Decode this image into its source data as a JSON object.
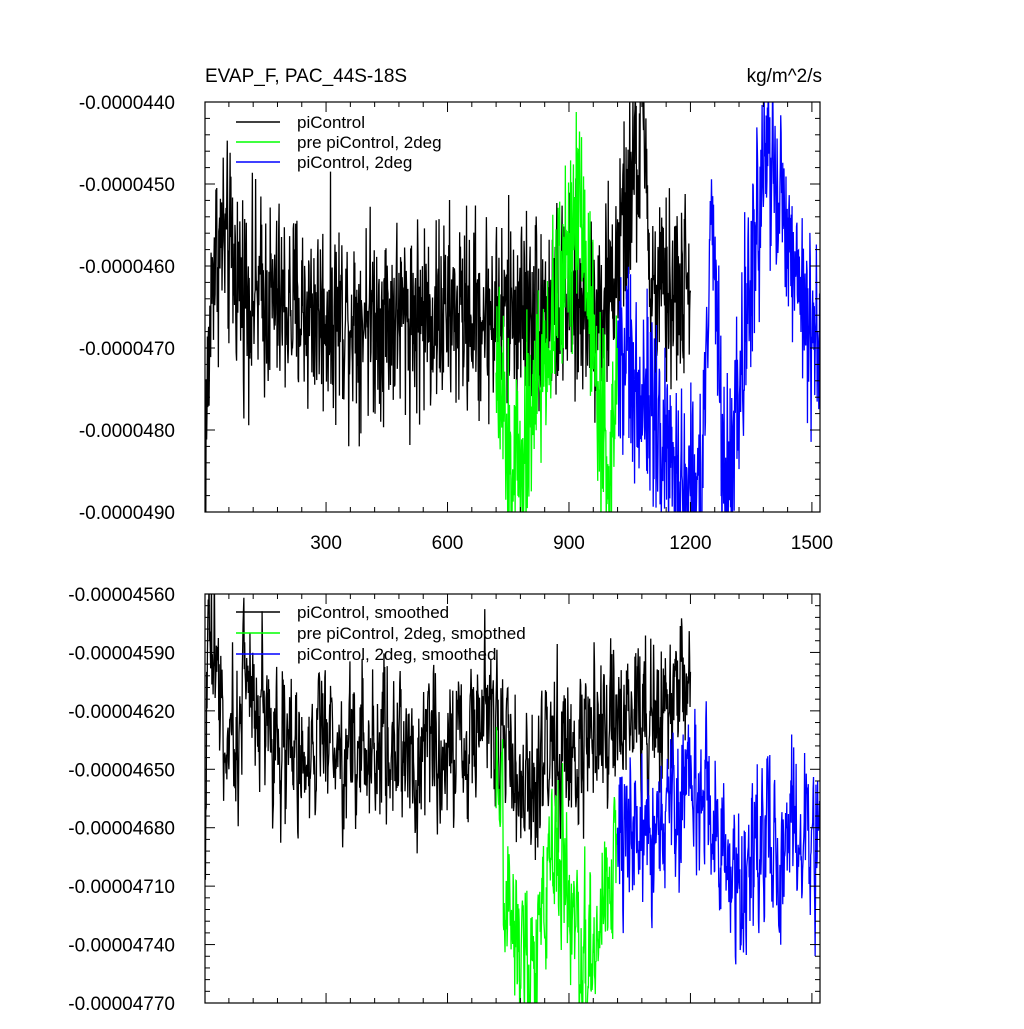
{
  "chart_data": [
    {
      "type": "line",
      "title": "EVAP_F, PAC_44S-18S",
      "units": "kg/m^2/s",
      "xlabel": "",
      "ylabel": "",
      "xlim": [
        1,
        1520
      ],
      "ylim": [
        -4.9e-05,
        -4.4e-05
      ],
      "xticks": [
        300,
        600,
        900,
        1200,
        1500
      ],
      "xtick_labels": [
        "300",
        "600",
        "900",
        "1200",
        "1500"
      ],
      "yticks": [
        -4.4e-05,
        -4.5e-05,
        -4.6e-05,
        -4.7e-05,
        -4.8e-05,
        -4.9e-05
      ],
      "ytick_labels": [
        "-0.0000440",
        "-0.0000450",
        "-0.0000460",
        "-0.0000470",
        "-0.0000480",
        "-0.0000490"
      ],
      "grid": false,
      "legend_position": "top-left",
      "series": [
        {
          "name": "piControl",
          "color": "#000000",
          "x_range": [
            1,
            1200
          ],
          "key_points": [
            [
              1,
              -4.83e-05
            ],
            [
              20,
              -4.6e-05
            ],
            [
              45,
              -4.57e-05
            ],
            [
              100,
              -4.63e-05
            ],
            [
              200,
              -4.65e-05
            ],
            [
              300,
              -4.66e-05
            ],
            [
              400,
              -4.66e-05
            ],
            [
              500,
              -4.66e-05
            ],
            [
              600,
              -4.66e-05
            ],
            [
              700,
              -4.66e-05
            ],
            [
              800,
              -4.65e-05
            ],
            [
              900,
              -4.65e-05
            ],
            [
              1000,
              -4.64e-05
            ],
            [
              1090,
              -4.42e-05
            ],
            [
              1100,
              -4.64e-05
            ],
            [
              1200,
              -4.63e-05
            ]
          ],
          "mean": -4.65e-05,
          "spread": 1.2e-06
        },
        {
          "name": "pre piControl, 2deg",
          "color": "#00ff00",
          "x_range": [
            720,
            1020
          ],
          "key_points": [
            [
              720,
              -4.73e-05
            ],
            [
              760,
              -4.86e-05
            ],
            [
              850,
              -4.7e-05
            ],
            [
              925,
              -4.5e-05
            ],
            [
              1000,
              -4.88e-05
            ],
            [
              1020,
              -4.7e-05
            ]
          ],
          "mean": -4.7e-05,
          "spread": 1.2e-06
        },
        {
          "name": "piControl, 2deg",
          "color": "#0000ff",
          "x_range": [
            1020,
            1520
          ],
          "key_points": [
            [
              1020,
              -4.7e-05
            ],
            [
              1225,
              -4.9e-05
            ],
            [
              1250,
              -4.55e-05
            ],
            [
              1290,
              -4.89e-05
            ],
            [
              1385,
              -4.45e-05
            ],
            [
              1500,
              -4.7e-05
            ],
            [
              1520,
              -4.68e-05
            ]
          ],
          "mean": -4.69e-05,
          "spread": 1.2e-06
        }
      ]
    },
    {
      "type": "line",
      "title": "",
      "xlabel": "",
      "ylabel": "",
      "xlim": [
        1,
        1520
      ],
      "ylim": [
        -4.77e-05,
        -4.56e-05
      ],
      "xticks": [
        300,
        600,
        900,
        1200,
        1500
      ],
      "xtick_labels": [],
      "yticks": [
        -4.56e-05,
        -4.59e-05,
        -4.62e-05,
        -4.65e-05,
        -4.68e-05,
        -4.71e-05,
        -4.74e-05,
        -4.77e-05
      ],
      "ytick_labels": [
        "-0.00004560",
        "-0.00004590",
        "-0.00004620",
        "-0.00004650",
        "-0.00004680",
        "-0.00004710",
        "-0.00004740",
        "-0.00004770"
      ],
      "grid": false,
      "legend_position": "top-left",
      "series": [
        {
          "name": "piControl, smoothed",
          "color": "#000000",
          "x_range": [
            1,
            1200
          ],
          "key_points": [
            [
              1,
              -4.69e-05
            ],
            [
              5,
              -4.6e-05
            ],
            [
              10,
              -4.57e-05
            ],
            [
              30,
              -4.6e-05
            ],
            [
              60,
              -4.65e-05
            ],
            [
              100,
              -4.6e-05
            ],
            [
              200,
              -4.64e-05
            ],
            [
              300,
              -4.64e-05
            ],
            [
              400,
              -4.64e-05
            ],
            [
              500,
              -4.64e-05
            ],
            [
              600,
              -4.64e-05
            ],
            [
              700,
              -4.62e-05
            ],
            [
              800,
              -4.66e-05
            ],
            [
              900,
              -4.64e-05
            ],
            [
              1000,
              -4.63e-05
            ],
            [
              1100,
              -4.62e-05
            ],
            [
              1200,
              -4.6e-05
            ]
          ],
          "mean": -4.64e-05,
          "spread": 5e-07
        },
        {
          "name": "pre piControl, 2deg, smoothed",
          "color": "#00ff00",
          "x_range": [
            720,
            1020
          ],
          "key_points": [
            [
              720,
              -4.67e-05
            ],
            [
              750,
              -4.72e-05
            ],
            [
              820,
              -4.75e-05
            ],
            [
              870,
              -4.68e-05
            ],
            [
              940,
              -4.76e-05
            ],
            [
              1000,
              -4.7e-05
            ],
            [
              1020,
              -4.68e-05
            ]
          ],
          "mean": -4.71e-05,
          "spread": 5e-07
        },
        {
          "name": "piControl, 2deg, smoothed",
          "color": "#0000ff",
          "x_range": [
            1020,
            1520
          ],
          "key_points": [
            [
              1020,
              -4.68e-05
            ],
            [
              1100,
              -4.68e-05
            ],
            [
              1200,
              -4.66e-05
            ],
            [
              1300,
              -4.7e-05
            ],
            [
              1400,
              -4.69e-05
            ],
            [
              1500,
              -4.68e-05
            ],
            [
              1520,
              -4.69e-05
            ]
          ],
          "mean": -4.69e-05,
          "spread": 5e-07
        }
      ]
    }
  ]
}
